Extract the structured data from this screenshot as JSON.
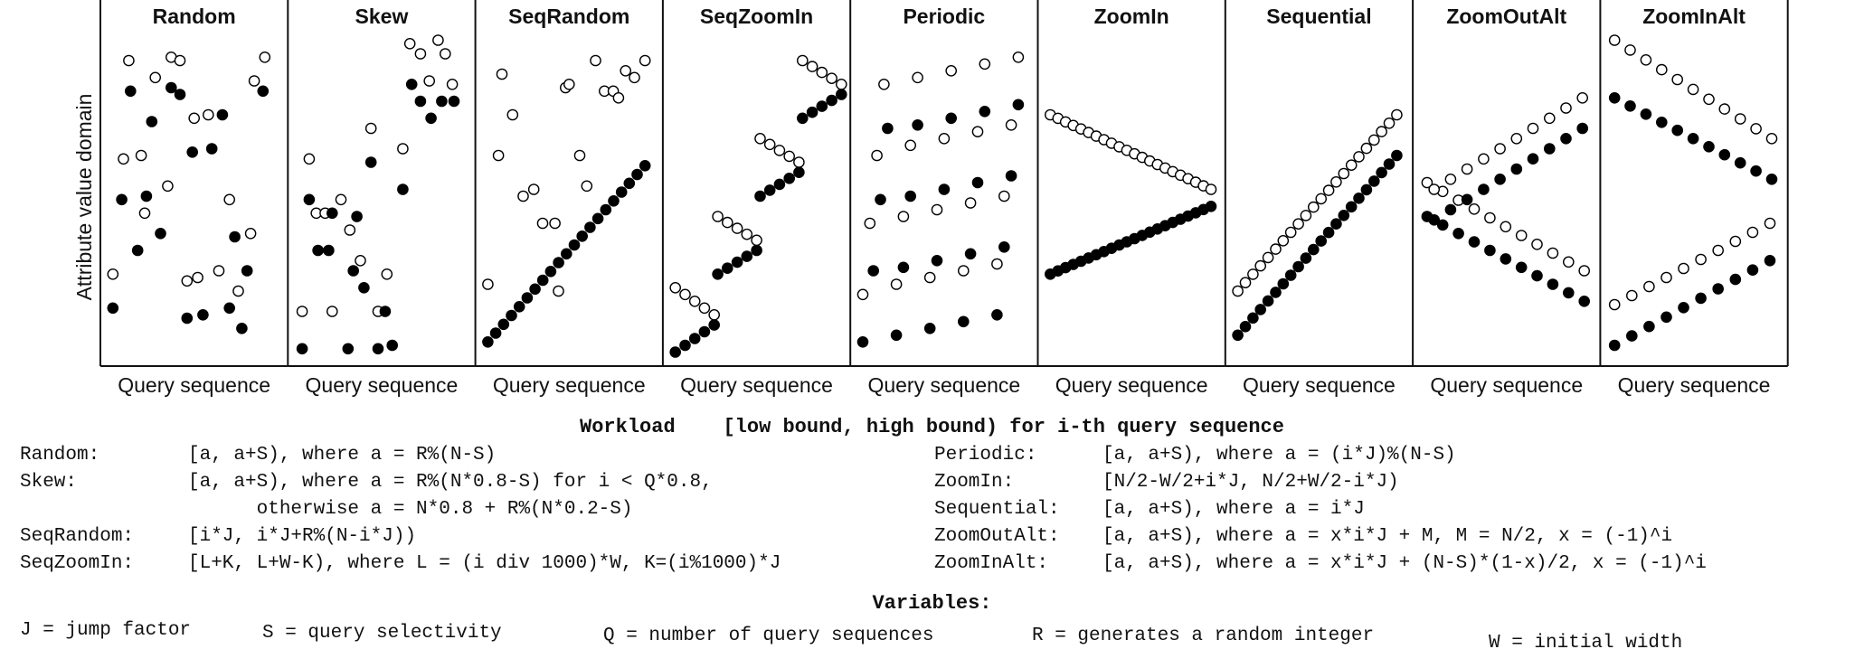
{
  "figure": {
    "y_axis_label": "Attribute value domain",
    "x_axis_label": "Query sequence"
  },
  "chart_data": [
    {
      "type": "scatter",
      "title": "Random",
      "xlabel": "Query sequence",
      "ylabel": "Attribute value domain",
      "xlim": [
        0,
        1
      ],
      "ylim": [
        0,
        1
      ],
      "series": [
        {
          "marker": "open",
          "points": [
            [
              0.04,
              0.25
            ],
            [
              0.1,
              0.59
            ],
            [
              0.13,
              0.88
            ],
            [
              0.22,
              0.43
            ],
            [
              0.2,
              0.6
            ],
            [
              0.28,
              0.83
            ],
            [
              0.35,
              0.51
            ],
            [
              0.37,
              0.89
            ],
            [
              0.42,
              0.88
            ],
            [
              0.46,
              0.23
            ],
            [
              0.52,
              0.24
            ],
            [
              0.5,
              0.71
            ],
            [
              0.58,
              0.72
            ],
            [
              0.64,
              0.26
            ],
            [
              0.7,
              0.47
            ],
            [
              0.75,
              0.2
            ],
            [
              0.82,
              0.37
            ],
            [
              0.84,
              0.82
            ],
            [
              0.9,
              0.89
            ]
          ]
        },
        {
          "marker": "filled",
          "points": [
            [
              0.04,
              0.15
            ],
            [
              0.09,
              0.47
            ],
            [
              0.14,
              0.79
            ],
            [
              0.18,
              0.32
            ],
            [
              0.23,
              0.48
            ],
            [
              0.26,
              0.7
            ],
            [
              0.31,
              0.37
            ],
            [
              0.37,
              0.8
            ],
            [
              0.42,
              0.78
            ],
            [
              0.49,
              0.61
            ],
            [
              0.46,
              0.12
            ],
            [
              0.55,
              0.13
            ],
            [
              0.6,
              0.62
            ],
            [
              0.66,
              0.72
            ],
            [
              0.7,
              0.15
            ],
            [
              0.73,
              0.36
            ],
            [
              0.77,
              0.09
            ],
            [
              0.8,
              0.26
            ],
            [
              0.89,
              0.79
            ]
          ]
        }
      ]
    },
    {
      "type": "scatter",
      "title": "Skew",
      "xlabel": "Query sequence",
      "ylabel": "Attribute value domain",
      "xlim": [
        0,
        1
      ],
      "ylim": [
        0,
        1
      ],
      "series": [
        {
          "marker": "open",
          "points": [
            [
              0.05,
              0.14
            ],
            [
              0.09,
              0.59
            ],
            [
              0.13,
              0.43
            ],
            [
              0.18,
              0.43
            ],
            [
              0.22,
              0.14
            ],
            [
              0.27,
              0.47
            ],
            [
              0.32,
              0.38
            ],
            [
              0.38,
              0.29
            ],
            [
              0.44,
              0.68
            ],
            [
              0.48,
              0.14
            ],
            [
              0.53,
              0.25
            ],
            [
              0.62,
              0.62
            ],
            [
              0.66,
              0.93
            ],
            [
              0.72,
              0.9
            ],
            [
              0.77,
              0.82
            ],
            [
              0.82,
              0.94
            ],
            [
              0.86,
              0.9
            ],
            [
              0.9,
              0.81
            ]
          ]
        },
        {
          "marker": "filled",
          "points": [
            [
              0.05,
              0.03
            ],
            [
              0.09,
              0.47
            ],
            [
              0.14,
              0.32
            ],
            [
              0.2,
              0.32
            ],
            [
              0.22,
              0.43
            ],
            [
              0.31,
              0.03
            ],
            [
              0.34,
              0.26
            ],
            [
              0.36,
              0.42
            ],
            [
              0.4,
              0.21
            ],
            [
              0.44,
              0.58
            ],
            [
              0.48,
              0.03
            ],
            [
              0.52,
              0.14
            ],
            [
              0.56,
              0.04
            ],
            [
              0.62,
              0.5
            ],
            [
              0.67,
              0.81
            ],
            [
              0.72,
              0.76
            ],
            [
              0.78,
              0.71
            ],
            [
              0.84,
              0.76
            ],
            [
              0.91,
              0.76
            ]
          ]
        }
      ]
    },
    {
      "type": "scatter",
      "title": "SeqRandom",
      "xlabel": "Query sequence",
      "ylabel": "Attribute value domain",
      "xlim": [
        0,
        1
      ],
      "ylim": [
        0,
        1
      ],
      "series": [
        {
          "marker": "open",
          "points": [
            [
              0.04,
              0.22
            ],
            [
              0.1,
              0.6
            ],
            [
              0.12,
              0.84
            ],
            [
              0.18,
              0.72
            ],
            [
              0.24,
              0.48
            ],
            [
              0.3,
              0.5
            ],
            [
              0.35,
              0.4
            ],
            [
              0.42,
              0.4
            ],
            [
              0.44,
              0.2
            ],
            [
              0.48,
              0.8
            ],
            [
              0.5,
              0.81
            ],
            [
              0.56,
              0.6
            ],
            [
              0.6,
              0.51
            ],
            [
              0.65,
              0.88
            ],
            [
              0.7,
              0.79
            ],
            [
              0.75,
              0.79
            ],
            [
              0.78,
              0.77
            ],
            [
              0.82,
              0.85
            ],
            [
              0.87,
              0.83
            ],
            [
              0.93,
              0.88
            ]
          ]
        },
        {
          "marker": "filled",
          "linear": true,
          "from": 0.04,
          "to": 0.93,
          "count": 21,
          "start": 0.05,
          "end": 0.57
        }
      ]
    },
    {
      "type": "scatter",
      "title": "SeqZoomIn",
      "xlabel": "Query sequence",
      "ylabel": "Attribute value domain",
      "xlim": [
        0,
        1
      ],
      "ylim": [
        0,
        1
      ],
      "series": [
        {
          "marker": "open",
          "staircase": [
            {
              "x0": 0.04,
              "x1": 0.26,
              "n": 5,
              "y0": 0.21,
              "y1": 0.13
            },
            {
              "x0": 0.28,
              "x1": 0.5,
              "n": 5,
              "y0": 0.42,
              "y1": 0.35
            },
            {
              "x0": 0.52,
              "x1": 0.74,
              "n": 5,
              "y0": 0.65,
              "y1": 0.58
            },
            {
              "x0": 0.76,
              "x1": 0.98,
              "n": 5,
              "y0": 0.88,
              "y1": 0.81
            }
          ]
        },
        {
          "marker": "filled",
          "staircase": [
            {
              "x0": 0.04,
              "x1": 0.26,
              "n": 5,
              "y0": 0.02,
              "y1": 0.1
            },
            {
              "x0": 0.28,
              "x1": 0.5,
              "n": 5,
              "y0": 0.25,
              "y1": 0.32
            },
            {
              "x0": 0.52,
              "x1": 0.74,
              "n": 5,
              "y0": 0.48,
              "y1": 0.55
            },
            {
              "x0": 0.76,
              "x1": 0.98,
              "n": 5,
              "y0": 0.71,
              "y1": 0.78
            }
          ]
        }
      ]
    },
    {
      "type": "scatter",
      "title": "Periodic",
      "xlabel": "Query sequence",
      "ylabel": "Attribute value domain",
      "xlim": [
        0,
        1
      ],
      "ylim": [
        0,
        1
      ],
      "series": [
        {
          "marker": "open",
          "points": [
            [
              0.04,
              0.19
            ],
            [
              0.08,
              0.4
            ],
            [
              0.12,
              0.6
            ],
            [
              0.16,
              0.81
            ],
            [
              0.23,
              0.22
            ],
            [
              0.27,
              0.42
            ],
            [
              0.31,
              0.63
            ],
            [
              0.35,
              0.83
            ],
            [
              0.42,
              0.24
            ],
            [
              0.46,
              0.44
            ],
            [
              0.5,
              0.65
            ],
            [
              0.54,
              0.85
            ],
            [
              0.61,
              0.26
            ],
            [
              0.65,
              0.46
            ],
            [
              0.69,
              0.67
            ],
            [
              0.73,
              0.87
            ],
            [
              0.8,
              0.28
            ],
            [
              0.84,
              0.48
            ],
            [
              0.88,
              0.69
            ],
            [
              0.92,
              0.89
            ]
          ]
        },
        {
          "marker": "filled",
          "points": [
            [
              0.04,
              0.05
            ],
            [
              0.1,
              0.26
            ],
            [
              0.14,
              0.47
            ],
            [
              0.18,
              0.68
            ],
            [
              0.23,
              0.07
            ],
            [
              0.27,
              0.27
            ],
            [
              0.31,
              0.48
            ],
            [
              0.35,
              0.69
            ],
            [
              0.42,
              0.09
            ],
            [
              0.46,
              0.29
            ],
            [
              0.5,
              0.5
            ],
            [
              0.54,
              0.71
            ],
            [
              0.61,
              0.11
            ],
            [
              0.65,
              0.31
            ],
            [
              0.69,
              0.52
            ],
            [
              0.73,
              0.73
            ],
            [
              0.8,
              0.13
            ],
            [
              0.84,
              0.33
            ],
            [
              0.88,
              0.54
            ],
            [
              0.92,
              0.75
            ]
          ]
        }
      ]
    },
    {
      "type": "scatter",
      "title": "ZoomIn",
      "xlabel": "Query sequence",
      "ylabel": "Attribute value domain",
      "xlim": [
        0,
        1
      ],
      "ylim": [
        0,
        1
      ],
      "series": [
        {
          "marker": "open",
          "linear": true,
          "from": 0.04,
          "to": 0.95,
          "count": 22,
          "start": 0.72,
          "end": 0.5
        },
        {
          "marker": "filled",
          "linear": true,
          "from": 0.04,
          "to": 0.95,
          "count": 22,
          "start": 0.25,
          "end": 0.45
        }
      ]
    },
    {
      "type": "scatter",
      "title": "Sequential",
      "xlabel": "Query sequence",
      "ylabel": "Attribute value domain",
      "xlim": [
        0,
        1
      ],
      "ylim": [
        0,
        1
      ],
      "series": [
        {
          "marker": "open",
          "linear": true,
          "from": 0.04,
          "to": 0.94,
          "count": 22,
          "start": 0.2,
          "end": 0.72
        },
        {
          "marker": "filled",
          "linear": true,
          "from": 0.04,
          "to": 0.94,
          "count": 22,
          "start": 0.07,
          "end": 0.6
        }
      ]
    },
    {
      "type": "scatter",
      "title": "ZoomOutAlt",
      "xlabel": "Query sequence",
      "ylabel": "Attribute value domain",
      "xlim": [
        0,
        1
      ],
      "ylim": [
        0,
        1
      ],
      "series": [
        {
          "marker": "open",
          "linear": true,
          "from": 0.05,
          "to": 0.94,
          "count": 11,
          "start": 0.52,
          "end": 0.26
        },
        {
          "marker": "open",
          "linear": true,
          "from": 0.09,
          "to": 0.93,
          "count": 10,
          "start": 0.5,
          "end": 0.77
        },
        {
          "marker": "filled",
          "linear": true,
          "from": 0.05,
          "to": 0.94,
          "count": 11,
          "start": 0.42,
          "end": 0.17
        },
        {
          "marker": "filled",
          "linear": true,
          "from": 0.09,
          "to": 0.93,
          "count": 10,
          "start": 0.41,
          "end": 0.68
        }
      ]
    },
    {
      "type": "scatter",
      "title": "ZoomInAlt",
      "xlabel": "Query sequence",
      "ylabel": "Attribute value domain",
      "xlim": [
        0,
        1
      ],
      "ylim": [
        0,
        1
      ],
      "series": [
        {
          "marker": "open",
          "linear": true,
          "from": 0.05,
          "to": 0.94,
          "count": 11,
          "start": 0.94,
          "end": 0.65
        },
        {
          "marker": "filled",
          "linear": true,
          "from": 0.05,
          "to": 0.94,
          "count": 11,
          "start": 0.77,
          "end": 0.53
        },
        {
          "marker": "open",
          "linear": true,
          "from": 0.05,
          "to": 0.93,
          "count": 10,
          "start": 0.16,
          "end": 0.4
        },
        {
          "marker": "filled",
          "linear": true,
          "from": 0.05,
          "to": 0.93,
          "count": 10,
          "start": 0.04,
          "end": 0.29
        }
      ]
    }
  ],
  "definitions": {
    "heading": "Workload    [low bound, high bound) for i-th query sequence",
    "left": [
      {
        "name": "Random:",
        "formula": "[a, a+S), where a = R%(N-S)"
      },
      {
        "name": "Skew:",
        "formula": "[a, a+S), where a = R%(N*0.8-S) for i < Q*0.8,"
      },
      {
        "name": "",
        "formula": "      otherwise a = N*0.8 + R%(N*0.2-S)"
      },
      {
        "name": "SeqRandom:",
        "formula": "[i*J, i*J+R%(N-i*J))"
      },
      {
        "name": "SeqZoomIn:",
        "formula": "[L+K, L+W-K), where L = (i div 1000)*W, K=(i%1000)*J"
      }
    ],
    "right": [
      {
        "name": "Periodic:",
        "formula": "[a, a+S), where a = (i*J)%(N-S)"
      },
      {
        "name": "ZoomIn:",
        "formula": "[N/2-W/2+i*J, N/2+W/2-i*J)"
      },
      {
        "name": "Sequential:",
        "formula": "[a, a+S), where a = i*J"
      },
      {
        "name": "ZoomOutAlt:",
        "formula": "[a, a+S), where a = x*i*J + M, M = N/2, x = (-1)^i"
      },
      {
        "name": "ZoomInAlt:",
        "formula": "[a, a+S), where a = x*i*J + (N-S)*(1-x)/2, x = (-1)^i"
      }
    ]
  },
  "variables": {
    "heading": "Variables:",
    "items": [
      "J = jump factor",
      "S = query selectivity",
      "Q = number of query sequences",
      "R = generates a random integer",
      "W = initial width"
    ]
  }
}
